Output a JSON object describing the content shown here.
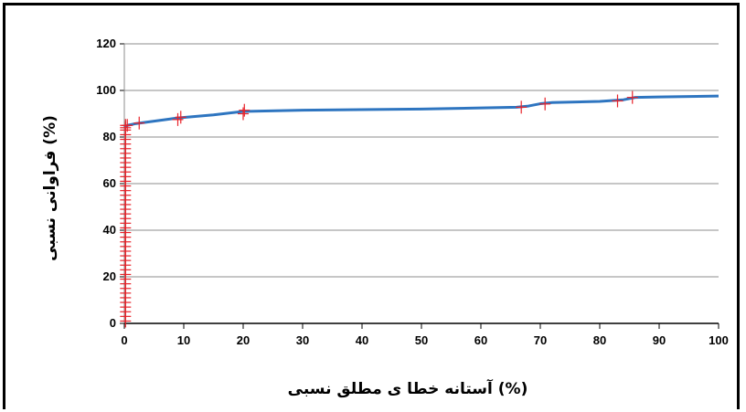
{
  "chart_data": {
    "type": "line",
    "title": "",
    "xlabel": "آستانه خطا ی مطلق نسبی (%)",
    "ylabel": "فراوانی نسبی (%)",
    "xlim": [
      0,
      100
    ],
    "ylim": [
      0,
      120
    ],
    "x_ticks": [
      "0",
      "10",
      "20",
      "30",
      "40",
      "50",
      "60",
      "70",
      "80",
      "90",
      "100"
    ],
    "y_ticks": [
      "0",
      "20",
      "40",
      "60",
      "80",
      "100",
      "120"
    ],
    "grid": "horizontal",
    "legend": "none",
    "series": [
      {
        "style": "line",
        "color": "#2e75c0",
        "x": [
          0,
          0.5,
          2,
          5,
          9,
          15,
          20,
          30,
          50,
          66,
          68,
          70,
          72,
          80,
          84,
          86,
          90,
          100
        ],
        "y": [
          84,
          85,
          85.8,
          86.8,
          88.2,
          89.5,
          91,
          91.5,
          92,
          92.8,
          93.3,
          94.3,
          94.8,
          95.3,
          96,
          97,
          97.2,
          97.6
        ]
      },
      {
        "style": "markers",
        "marker": "plus",
        "color": "#e8232a",
        "x": [
          0.2,
          0.2,
          0.2,
          0.2,
          0.2,
          0.2,
          0.2,
          0.2,
          0.2,
          0.2,
          0.2,
          0.2,
          0.2,
          0.2,
          0.2,
          0.2,
          0.2,
          0.2,
          0.2,
          0.2,
          0.2,
          0.2,
          0.2,
          0.2,
          0.2,
          0.2,
          0.2,
          0.2,
          0.2,
          0.2,
          0.2,
          0.2,
          0.2,
          0.2,
          0.2,
          0.2,
          0.2,
          0.2,
          0.2,
          0.2,
          0.2,
          0.2,
          0.2,
          0.2,
          0.5,
          2.5,
          9,
          9.5,
          20,
          20.2,
          66.8,
          70.8,
          83,
          85.5
        ],
        "y": [
          1,
          3,
          5,
          7,
          9,
          11,
          13,
          15,
          17,
          19,
          21,
          23,
          25,
          27,
          29,
          31,
          33,
          35,
          37,
          39,
          41,
          43,
          45,
          47,
          49,
          51,
          53,
          55,
          57,
          59,
          61,
          63,
          65,
          67,
          69,
          71,
          73,
          75,
          77,
          79,
          81,
          83,
          84,
          85,
          85,
          86,
          87.5,
          88.5,
          90,
          91.5,
          92.8,
          94.2,
          95.5,
          97
        ]
      }
    ]
  }
}
